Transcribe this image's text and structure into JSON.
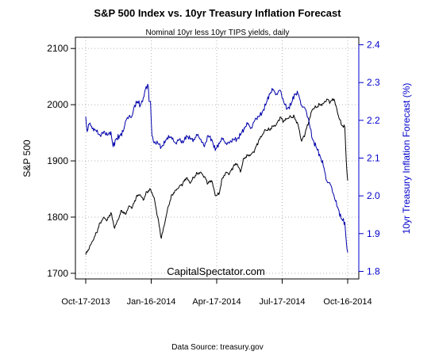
{
  "chart_data": {
    "type": "line",
    "title": "S&P 500 Index vs. 10yr Treasury Inflation Forecast",
    "subtitle": "Nominal 10yr less 10yr TIPS yields, daily",
    "watermark": "CapitalSpectator.com",
    "source": "Data Source: treasury.gov",
    "xlabel": "",
    "x_ticks": [
      "Oct-17-2013",
      "Jan-16-2014",
      "Apr-17-2014",
      "Jul-17-2014",
      "Oct-16-2014"
    ],
    "x_tick_days": [
      0,
      91,
      182,
      273,
      364
    ],
    "x_range_days": [
      0,
      364
    ],
    "grid": true,
    "left_axis": {
      "label": "S&P 500",
      "ticks": [
        1700,
        1800,
        1900,
        2000,
        2100
      ],
      "ylim": [
        1690,
        2120
      ],
      "color": "#000000"
    },
    "right_axis": {
      "label": "10yr Treasury Inflation Forecast (%)",
      "ticks": [
        "1.8",
        "1.9",
        "2.0",
        "2.1",
        "2.2",
        "2.3",
        "2.4"
      ],
      "ylim": [
        1.78,
        2.42
      ],
      "color": "#0000cc"
    },
    "series": [
      {
        "name": "",
        "axis": "left",
        "color": "#000000",
        "points": [
          [
            0,
            1733
          ],
          [
            5,
            1745
          ],
          [
            10,
            1758
          ],
          [
            15,
            1772
          ],
          [
            20,
            1790
          ],
          [
            25,
            1800
          ],
          [
            30,
            1795
          ],
          [
            35,
            1808
          ],
          [
            40,
            1780
          ],
          [
            45,
            1795
          ],
          [
            50,
            1812
          ],
          [
            55,
            1805
          ],
          [
            60,
            1820
          ],
          [
            65,
            1818
          ],
          [
            70,
            1835
          ],
          [
            75,
            1840
          ],
          [
            80,
            1830
          ],
          [
            85,
            1845
          ],
          [
            90,
            1850
          ],
          [
            95,
            1835
          ],
          [
            100,
            1800
          ],
          [
            105,
            1762
          ],
          [
            110,
            1790
          ],
          [
            115,
            1820
          ],
          [
            120,
            1840
          ],
          [
            125,
            1848
          ],
          [
            130,
            1855
          ],
          [
            135,
            1860
          ],
          [
            140,
            1870
          ],
          [
            145,
            1860
          ],
          [
            150,
            1870
          ],
          [
            155,
            1878
          ],
          [
            160,
            1880
          ],
          [
            165,
            1872
          ],
          [
            170,
            1860
          ],
          [
            175,
            1865
          ],
          [
            180,
            1838
          ],
          [
            185,
            1840
          ],
          [
            190,
            1870
          ],
          [
            195,
            1880
          ],
          [
            200,
            1878
          ],
          [
            205,
            1890
          ],
          [
            210,
            1895
          ],
          [
            215,
            1880
          ],
          [
            220,
            1905
          ],
          [
            225,
            1910
          ],
          [
            230,
            1912
          ],
          [
            235,
            1920
          ],
          [
            240,
            1935
          ],
          [
            245,
            1945
          ],
          [
            250,
            1955
          ],
          [
            255,
            1955
          ],
          [
            260,
            1962
          ],
          [
            265,
            1965
          ],
          [
            270,
            1978
          ],
          [
            275,
            1970
          ],
          [
            280,
            1975
          ],
          [
            285,
            1978
          ],
          [
            290,
            1978
          ],
          [
            295,
            1965
          ],
          [
            300,
            1935
          ],
          [
            305,
            1950
          ],
          [
            310,
            1970
          ],
          [
            315,
            1992
          ],
          [
            320,
            1995
          ],
          [
            325,
            2000
          ],
          [
            330,
            2002
          ],
          [
            335,
            2010
          ],
          [
            340,
            2005
          ],
          [
            345,
            2010
          ],
          [
            350,
            1985
          ],
          [
            355,
            1965
          ],
          [
            360,
            1960
          ],
          [
            362,
            1900
          ],
          [
            364,
            1865
          ]
        ]
      },
      {
        "name": "",
        "axis": "right",
        "color": "#0000aa",
        "points": [
          [
            0,
            2.21
          ],
          [
            2,
            2.17
          ],
          [
            5,
            2.19
          ],
          [
            10,
            2.18
          ],
          [
            15,
            2.17
          ],
          [
            20,
            2.16
          ],
          [
            25,
            2.17
          ],
          [
            30,
            2.16
          ],
          [
            35,
            2.17
          ],
          [
            38,
            2.13
          ],
          [
            42,
            2.15
          ],
          [
            48,
            2.16
          ],
          [
            52,
            2.17
          ],
          [
            56,
            2.2
          ],
          [
            60,
            2.21
          ],
          [
            64,
            2.21
          ],
          [
            68,
            2.24
          ],
          [
            72,
            2.25
          ],
          [
            76,
            2.24
          ],
          [
            80,
            2.26
          ],
          [
            84,
            2.29
          ],
          [
            87,
            2.29
          ],
          [
            88,
            2.25
          ],
          [
            90,
            2.25
          ],
          [
            92,
            2.16
          ],
          [
            95,
            2.14
          ],
          [
            100,
            2.14
          ],
          [
            105,
            2.13
          ],
          [
            110,
            2.14
          ],
          [
            115,
            2.16
          ],
          [
            120,
            2.15
          ],
          [
            125,
            2.14
          ],
          [
            130,
            2.15
          ],
          [
            135,
            2.14
          ],
          [
            140,
            2.16
          ],
          [
            145,
            2.15
          ],
          [
            150,
            2.15
          ],
          [
            155,
            2.16
          ],
          [
            160,
            2.15
          ],
          [
            165,
            2.13
          ],
          [
            170,
            2.16
          ],
          [
            175,
            2.15
          ],
          [
            180,
            2.12
          ],
          [
            185,
            2.14
          ],
          [
            190,
            2.15
          ],
          [
            195,
            2.14
          ],
          [
            200,
            2.14
          ],
          [
            205,
            2.15
          ],
          [
            210,
            2.15
          ],
          [
            215,
            2.16
          ],
          [
            220,
            2.18
          ],
          [
            225,
            2.19
          ],
          [
            230,
            2.18
          ],
          [
            235,
            2.2
          ],
          [
            240,
            2.21
          ],
          [
            245,
            2.22
          ],
          [
            250,
            2.24
          ],
          [
            255,
            2.27
          ],
          [
            260,
            2.28
          ],
          [
            265,
            2.27
          ],
          [
            270,
            2.28
          ],
          [
            275,
            2.25
          ],
          [
            280,
            2.23
          ],
          [
            285,
            2.24
          ],
          [
            290,
            2.27
          ],
          [
            295,
            2.27
          ],
          [
            300,
            2.24
          ],
          [
            305,
            2.23
          ],
          [
            310,
            2.2
          ],
          [
            315,
            2.15
          ],
          [
            320,
            2.13
          ],
          [
            325,
            2.11
          ],
          [
            330,
            2.08
          ],
          [
            335,
            2.04
          ],
          [
            340,
            2.03
          ],
          [
            345,
            2.0
          ],
          [
            350,
            1.97
          ],
          [
            355,
            1.94
          ],
          [
            360,
            1.93
          ],
          [
            362,
            1.88
          ],
          [
            364,
            1.85
          ]
        ]
      }
    ]
  }
}
